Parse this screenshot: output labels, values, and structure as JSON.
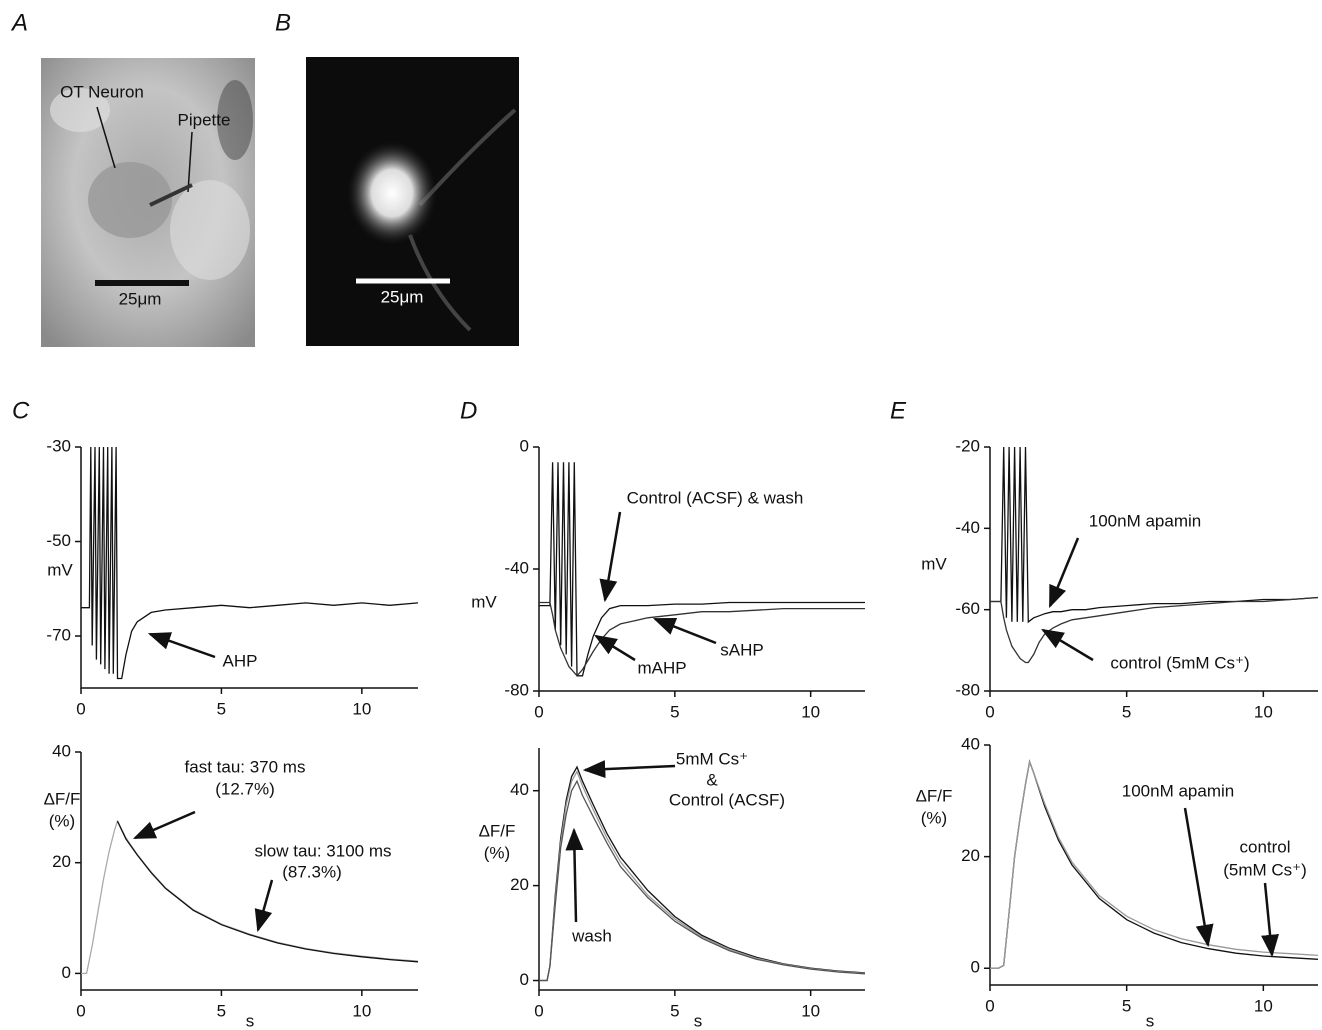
{
  "panels": {
    "A": {
      "letter": "A",
      "labels": [
        "OT Neuron",
        "Pipette"
      ],
      "scale_bar": "25μm"
    },
    "B": {
      "letter": "B",
      "scale_bar": "25μm"
    }
  },
  "chart_data": [
    {
      "type": "line",
      "panel_label": "C",
      "ylabel": [
        "mV"
      ],
      "x": [
        0,
        0.3,
        0.35,
        0.4,
        0.5,
        0.55,
        0.65,
        0.7,
        0.8,
        0.85,
        0.95,
        1.0,
        1.1,
        1.15,
        1.25,
        1.3,
        1.45,
        1.6,
        1.8,
        2.0,
        2.5,
        3,
        4,
        5,
        6,
        7,
        8,
        9,
        10,
        11,
        12
      ],
      "series": [
        {
          "color": "#111",
          "values": [
            -64,
            -64,
            -30,
            -72,
            -30,
            -75,
            -30,
            -76,
            -30,
            -77,
            -30,
            -78,
            -30,
            -78,
            -30,
            -79,
            -79,
            -74,
            -69,
            -67,
            -65,
            -64.5,
            -64,
            -63.5,
            -64,
            -63.5,
            -63,
            -63.5,
            -63,
            -63.5,
            -63
          ]
        }
      ],
      "xlim": [
        0,
        12
      ],
      "ylim": [
        -81,
        -30
      ],
      "xticks": [
        0,
        5,
        10
      ],
      "yticks": [
        -30,
        -50,
        -70
      ],
      "annotations": [
        "AHP"
      ]
    },
    {
      "type": "line",
      "ylabel": [
        "ΔF/F",
        "(%)"
      ],
      "xlabel": "s",
      "x": [
        0,
        0.2,
        0.4,
        0.6,
        0.8,
        1.0,
        1.2,
        1.3,
        1.6,
        2,
        2.5,
        3,
        4,
        5,
        6,
        7,
        8,
        9,
        10,
        11,
        12
      ],
      "series": [
        {
          "color": "#aaa",
          "values": [
            0,
            0,
            5,
            11,
            17,
            22,
            26,
            27.5,
            24.5,
            21.5,
            18.3,
            15.5,
            11.5,
            8.9,
            7.1,
            5.6,
            4.5,
            3.7,
            3.1,
            2.6,
            2.2
          ]
        },
        {
          "color": "#111",
          "values": [
            null,
            null,
            null,
            null,
            null,
            null,
            null,
            27.5,
            24.3,
            21.4,
            18.2,
            15.4,
            11.4,
            8.8,
            7,
            5.5,
            4.4,
            3.6,
            3,
            2.5,
            2.1
          ]
        }
      ],
      "xlim": [
        0,
        12
      ],
      "ylim": [
        -3,
        40
      ],
      "xticks": [
        0,
        5,
        10
      ],
      "yticks": [
        0,
        20,
        40
      ],
      "annotations": [
        "fast tau: 370 ms",
        "(12.7%)",
        "slow tau: 3100 ms",
        "(87.3%)"
      ]
    },
    {
      "type": "line",
      "panel_label": "D",
      "ylabel": [
        "mV"
      ],
      "x": [
        0,
        0.4,
        0.5,
        0.6,
        0.7,
        0.8,
        0.9,
        1.0,
        1.1,
        1.2,
        1.3,
        1.4,
        1.6,
        1.8,
        2.0,
        2.3,
        2.6,
        3,
        3.5,
        4,
        5,
        6,
        7,
        8,
        9,
        10,
        11,
        12
      ],
      "series": [
        {
          "color": "#111",
          "values": [
            -52,
            -52,
            -5,
            -60,
            -5,
            -65,
            -5,
            -68,
            -5,
            -72,
            -5,
            -75,
            -75,
            -68,
            -62,
            -56,
            -53,
            -52,
            -52,
            -52,
            -51.5,
            -51.5,
            -51,
            -51,
            -51,
            -51,
            -51,
            -51
          ]
        },
        {
          "color": "#333",
          "values": [
            -51,
            -51,
            -55,
            -60,
            -63,
            -66,
            -68,
            -70,
            -72,
            -73,
            -74,
            -75,
            -73,
            -70,
            -67,
            -63,
            -60,
            -58,
            -57,
            -56,
            -55,
            -54,
            -54,
            -53.5,
            -53,
            -53,
            -53,
            -53
          ]
        }
      ],
      "xlim": [
        0,
        12
      ],
      "ylim": [
        -80,
        0
      ],
      "xticks": [
        0,
        5,
        10
      ],
      "yticks": [
        0,
        -40,
        -80
      ],
      "annotations": [
        "Control (ACSF) & wash",
        "mAHP",
        "sAHP"
      ]
    },
    {
      "type": "line",
      "ylabel": [
        "ΔF/F",
        "(%)"
      ],
      "xlabel": "s",
      "x": [
        0,
        0.3,
        0.4,
        0.6,
        0.8,
        1.0,
        1.2,
        1.4,
        1.6,
        2,
        2.5,
        3,
        4,
        5,
        6,
        7,
        8,
        9,
        10,
        11,
        12
      ],
      "series": [
        {
          "color": "#111",
          "values": [
            0,
            0,
            3,
            18,
            30,
            38,
            43,
            45,
            42,
            37,
            31,
            26,
            19,
            13.5,
            9.5,
            6.8,
            4.9,
            3.5,
            2.6,
            2,
            1.6
          ]
        },
        {
          "color": "#999",
          "values": [
            0,
            0,
            3,
            17,
            29,
            37,
            42,
            44,
            41,
            36,
            30,
            25,
            18,
            13,
            9.2,
            6.6,
            4.7,
            3.4,
            2.5,
            1.9,
            1.5
          ]
        },
        {
          "color": "#555",
          "values": [
            0,
            0,
            3,
            16,
            28,
            35,
            40,
            42,
            39,
            34.5,
            29,
            24,
            17.5,
            12.5,
            8.9,
            6.3,
            4.5,
            3.3,
            2.4,
            1.8,
            1.4
          ]
        }
      ],
      "xlim": [
        0,
        12
      ],
      "ylim": [
        -2,
        49
      ],
      "xticks": [
        0,
        5,
        10
      ],
      "yticks": [
        0,
        20,
        40
      ],
      "annotations": [
        "5mM Cs⁺",
        "&",
        "Control (ACSF)",
        "wash"
      ]
    },
    {
      "type": "line",
      "panel_label": "E",
      "ylabel": [
        "mV"
      ],
      "x": [
        0,
        0.4,
        0.5,
        0.6,
        0.7,
        0.8,
        0.9,
        1.0,
        1.1,
        1.2,
        1.3,
        1.4,
        1.6,
        1.8,
        2.0,
        2.3,
        2.6,
        3,
        3.5,
        4,
        5,
        6,
        7,
        8,
        9,
        10,
        11,
        12
      ],
      "series": [
        {
          "color": "#111",
          "values": [
            -58,
            -58,
            -20,
            -62,
            -20,
            -63,
            -20,
            -63,
            -20,
            -63,
            -20,
            -63,
            -62,
            -61.5,
            -61,
            -60.5,
            -60.5,
            -60,
            -60,
            -59.5,
            -59,
            -58.5,
            -58.5,
            -58,
            -58,
            -57.5,
            -57.5,
            -57
          ]
        },
        {
          "color": "#333",
          "values": [
            -58,
            -58,
            -62,
            -65,
            -67,
            -69,
            -70,
            -71,
            -72,
            -72.5,
            -73,
            -73,
            -71,
            -68,
            -66,
            -64.5,
            -63.5,
            -62.5,
            -62,
            -61.5,
            -60.5,
            -59.5,
            -59,
            -58.5,
            -58,
            -58,
            -57.5,
            -57
          ]
        }
      ],
      "xlim": [
        0,
        12
      ],
      "ylim": [
        -80,
        -20
      ],
      "xticks": [
        0,
        5,
        10
      ],
      "yticks": [
        -20,
        -40,
        -60,
        -80
      ],
      "annotations": [
        "100nM apamin",
        "control (5mM Cs⁺)"
      ]
    },
    {
      "type": "line",
      "ylabel": [
        "ΔF/F",
        "(%)"
      ],
      "xlabel": "s",
      "x": [
        0,
        0.3,
        0.5,
        0.7,
        0.9,
        1.1,
        1.3,
        1.45,
        1.6,
        2,
        2.5,
        3,
        4,
        5,
        6,
        7,
        8,
        9,
        10,
        11,
        12
      ],
      "series": [
        {
          "color": "#111",
          "values": [
            0,
            0,
            0.5,
            10,
            20,
            27,
            33,
            37,
            35,
            29,
            23,
            18.5,
            12.5,
            8.7,
            6.3,
            4.6,
            3.5,
            2.7,
            2.2,
            1.9,
            1.6
          ]
        },
        {
          "color": "#999",
          "values": [
            0,
            0,
            0.5,
            10,
            20,
            27,
            33,
            37,
            35,
            29.5,
            23.5,
            19,
            13,
            9.3,
            6.9,
            5.3,
            4.2,
            3.4,
            2.9,
            2.6,
            2.3
          ]
        }
      ],
      "xlim": [
        0,
        12
      ],
      "ylim": [
        -3,
        40
      ],
      "xticks": [
        0,
        5,
        10
      ],
      "yticks": [
        0,
        20,
        40
      ],
      "annotations": [
        "100nM apamin",
        "control",
        "(5mM Cs⁺)"
      ]
    }
  ]
}
